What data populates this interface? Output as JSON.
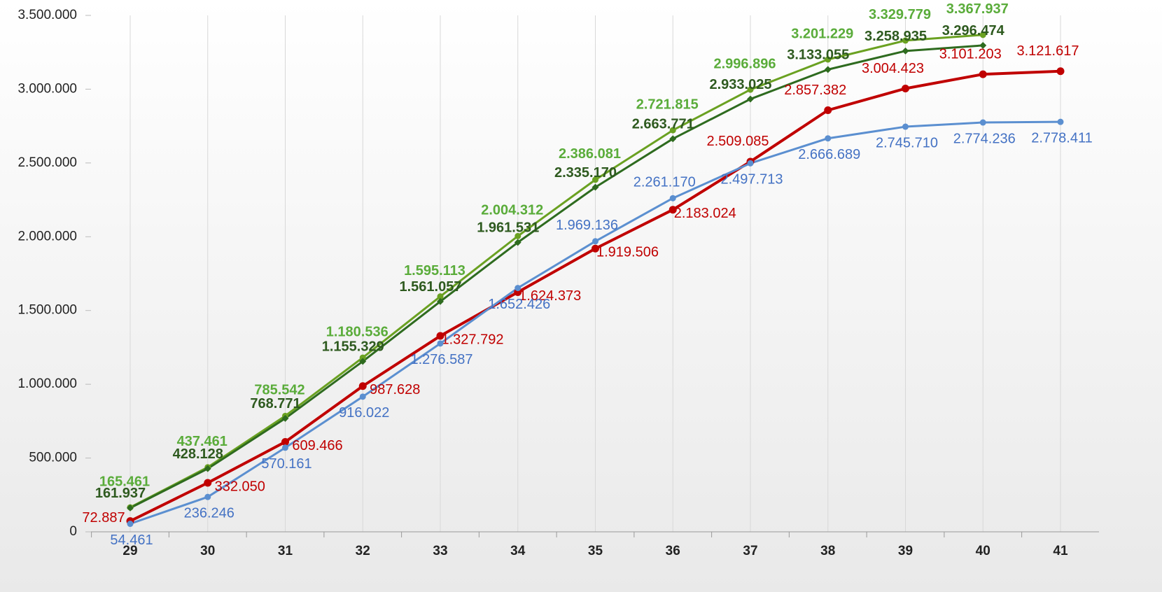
{
  "chart_data": {
    "type": "line",
    "categories": [
      "29",
      "30",
      "31",
      "32",
      "33",
      "34",
      "35",
      "36",
      "37",
      "38",
      "39",
      "40",
      "41"
    ],
    "ylim": [
      0,
      3500000
    ],
    "yticks": [
      0,
      {
        "value": 500000,
        "label": "500.000"
      },
      {
        "value": 1000000,
        "label": "1.000.000"
      },
      {
        "value": 1500000,
        "label": "1.500.000"
      },
      {
        "value": 2000000,
        "label": "2.000.000"
      },
      {
        "value": 2500000,
        "label": "2.500.000"
      },
      {
        "value": 3000000,
        "label": "3.000.000"
      },
      {
        "value": 3500000,
        "label": "3.500.000"
      }
    ],
    "grid": true,
    "series": [
      {
        "color": "#6aa121",
        "label_color": "#5aac3a",
        "marker": "circle",
        "bold": true,
        "values": [
          165461,
          437461,
          785542,
          1180536,
          1595113,
          2004312,
          2386081,
          2721815,
          2996896,
          3201229,
          3329779,
          3367937,
          null
        ],
        "value_labels": [
          "165.461",
          "437.461",
          "785.542",
          "1.180.536",
          "1.595.113",
          "2.004.312",
          "2.386.081",
          "2.721.815",
          "2.996.896",
          "3.201.229",
          "3.329.779",
          "3.367.937",
          null
        ]
      },
      {
        "color": "#2e6b1f",
        "label_color": "#2e5a1f",
        "marker": "diamond",
        "bold": true,
        "values": [
          161937,
          428128,
          768771,
          1155329,
          1561057,
          1961531,
          2335170,
          2663771,
          2933025,
          3133055,
          3258935,
          3296474,
          null
        ],
        "value_labels": [
          "161.937",
          "428.128",
          "768.771",
          "1.155.329",
          "1.561.057",
          "1.961.531",
          "2.335.170",
          "2.663.771",
          "2.933.025",
          "3.133.055",
          "3.258.935",
          "3.296.474",
          null
        ]
      },
      {
        "color": "#c00000",
        "label_color": "#c00000",
        "marker": "circle",
        "bold": false,
        "values": [
          72887,
          332050,
          609466,
          987628,
          1327792,
          1624373,
          1919506,
          2183024,
          2509085,
          2857382,
          3004423,
          3101203,
          3121617
        ],
        "value_labels": [
          "72.887",
          "332.050",
          "609.466",
          "987.628",
          "1.327.792",
          "1.624.373",
          "1.919.506",
          "2.183.024",
          "2.509.085",
          "2.857.382",
          "3.004.423",
          "3.101.203",
          "3.121.617"
        ]
      },
      {
        "color": "#5b8fd0",
        "label_color": "#4472c4",
        "marker": "circle",
        "bold": false,
        "values": [
          54461,
          236246,
          570161,
          916022,
          1276587,
          1652426,
          1969136,
          2261170,
          2497713,
          2666689,
          2745710,
          2774236,
          2778411
        ],
        "value_labels": [
          "54.461",
          "236.246",
          "570.161",
          "916.022",
          "1.276.587",
          "1.652.426",
          "1.969.136",
          "2.261.170",
          "2.497.713",
          "2.666.689",
          "2.745.710",
          "2.774.236",
          "2.778.411"
        ]
      }
    ]
  }
}
